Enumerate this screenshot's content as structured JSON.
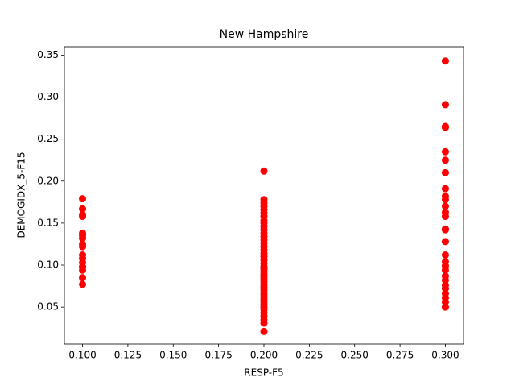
{
  "chart_data": {
    "type": "scatter",
    "title": "New Hampshire",
    "x_label": "RESP-F5",
    "y_label": "DEMOGIDX_5-F15",
    "xlim": [
      0.09,
      0.31
    ],
    "ylim": [
      0.006,
      0.36
    ],
    "xticks": [
      {
        "value": 0.1,
        "label": "0.100"
      },
      {
        "value": 0.125,
        "label": "0.125"
      },
      {
        "value": 0.15,
        "label": "0.150"
      },
      {
        "value": 0.175,
        "label": "0.175"
      },
      {
        "value": 0.2,
        "label": "0.200"
      },
      {
        "value": 0.225,
        "label": "0.225"
      },
      {
        "value": 0.25,
        "label": "0.250"
      },
      {
        "value": 0.275,
        "label": "0.275"
      },
      {
        "value": 0.3,
        "label": "0.300"
      }
    ],
    "yticks": [
      {
        "value": 0.05,
        "label": "0.05"
      },
      {
        "value": 0.1,
        "label": "0.10"
      },
      {
        "value": 0.15,
        "label": "0.15"
      },
      {
        "value": 0.2,
        "label": "0.20"
      },
      {
        "value": 0.25,
        "label": "0.25"
      },
      {
        "value": 0.3,
        "label": "0.30"
      },
      {
        "value": 0.35,
        "label": "0.35"
      }
    ],
    "series": [
      {
        "color": "#ff0000",
        "x": [
          0.1,
          0.1,
          0.1,
          0.1,
          0.1,
          0.1,
          0.1,
          0.1,
          0.1,
          0.1,
          0.1,
          0.1,
          0.1,
          0.1,
          0.1,
          0.1,
          0.2,
          0.2,
          0.2,
          0.2,
          0.2,
          0.2,
          0.2,
          0.2,
          0.2,
          0.2,
          0.2,
          0.2,
          0.2,
          0.2,
          0.2,
          0.2,
          0.2,
          0.2,
          0.2,
          0.2,
          0.2,
          0.2,
          0.2,
          0.2,
          0.2,
          0.2,
          0.2,
          0.2,
          0.2,
          0.2,
          0.2,
          0.2,
          0.2,
          0.2,
          0.2,
          0.2,
          0.2,
          0.2,
          0.2,
          0.2,
          0.2,
          0.2,
          0.2,
          0.2,
          0.3,
          0.3,
          0.3,
          0.3,
          0.3,
          0.3,
          0.3,
          0.3,
          0.3,
          0.3,
          0.3,
          0.3,
          0.3,
          0.3,
          0.3,
          0.3,
          0.3,
          0.3,
          0.3,
          0.3,
          0.3,
          0.3,
          0.3,
          0.3,
          0.3,
          0.3,
          0.3,
          0.3
        ],
        "values": [
          0.179,
          0.167,
          0.16,
          0.158,
          0.138,
          0.135,
          0.132,
          0.125,
          0.122,
          0.112,
          0.108,
          0.103,
          0.098,
          0.094,
          0.085,
          0.077,
          0.212,
          0.178,
          0.174,
          0.17,
          0.166,
          0.162,
          0.158,
          0.153,
          0.15,
          0.146,
          0.142,
          0.138,
          0.134,
          0.13,
          0.126,
          0.122,
          0.118,
          0.114,
          0.11,
          0.106,
          0.102,
          0.098,
          0.095,
          0.092,
          0.089,
          0.086,
          0.083,
          0.08,
          0.077,
          0.074,
          0.071,
          0.068,
          0.065,
          0.062,
          0.059,
          0.056,
          0.053,
          0.05,
          0.047,
          0.043,
          0.039,
          0.035,
          0.031,
          0.021,
          0.343,
          0.291,
          0.265,
          0.264,
          0.235,
          0.225,
          0.21,
          0.191,
          0.182,
          0.178,
          0.17,
          0.163,
          0.158,
          0.143,
          0.142,
          0.128,
          0.112,
          0.104,
          0.099,
          0.094,
          0.087,
          0.082,
          0.076,
          0.072,
          0.066,
          0.061,
          0.056,
          0.05
        ]
      }
    ]
  }
}
